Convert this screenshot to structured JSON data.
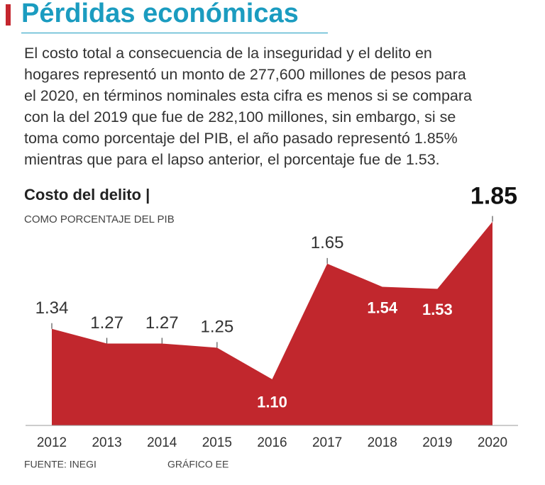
{
  "header": {
    "title": "Pérdidas económicas",
    "description": [
      "El costo total a consecuencia de la inseguridad y el delito en",
      "hogares representó un monto de 277,600 millones de pesos para",
      "el 2020, en términos nominales esta cifra es menos si se compara",
      "con la del 2019 que fue de 282,100 millones, sin embargo, si se",
      "toma como porcentaje del PIB, el año pasado representó 1.85%",
      "mientras que para el lapso anterior, el porcentaje fue de 1.53."
    ]
  },
  "chart_data": {
    "type": "area",
    "title": "Costo del delito |",
    "subtitle": "COMO PORCENTAJE DEL PIB",
    "categories": [
      "2012",
      "2013",
      "2014",
      "2015",
      "2016",
      "2017",
      "2018",
      "2019",
      "2020"
    ],
    "values": [
      1.34,
      1.27,
      1.27,
      1.25,
      1.1,
      1.65,
      1.54,
      1.53,
      1.85
    ],
    "value_labels": [
      "1.34",
      "1.27",
      "1.27",
      "1.25",
      "1.10",
      "1.65",
      "1.54",
      "1.53",
      "1.85"
    ],
    "color": "#c1272d",
    "ylim": [
      0.88,
      1.95
    ]
  },
  "footer": {
    "source": "FUENTE: INEGI",
    "credit": "GRÁFICO EE"
  }
}
